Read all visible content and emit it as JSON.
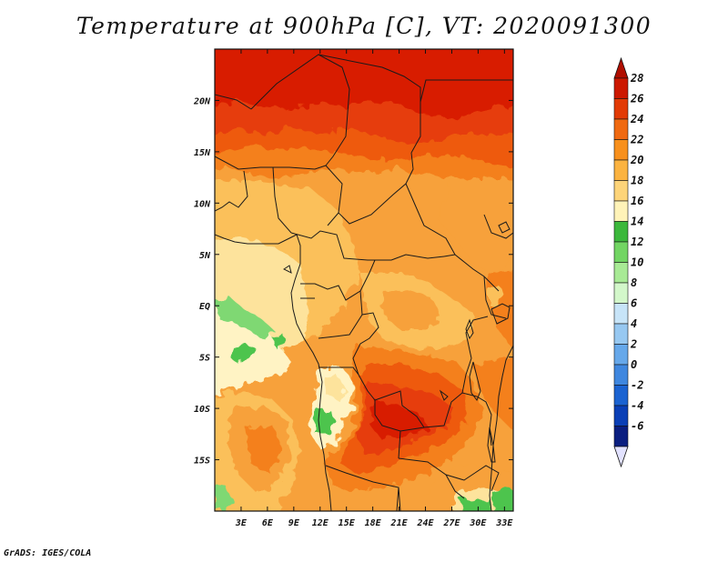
{
  "title": "Temperature at 900hPa [C], VT: 2020091300",
  "credit": "GrADS: IGES/COLA",
  "map": {
    "region": "Central and Southern Africa",
    "lon_range": [
      0,
      34
    ],
    "lat_range": [
      -20,
      25
    ],
    "x_ticks": [
      "3E",
      "6E",
      "9E",
      "12E",
      "15E",
      "18E",
      "21E",
      "24E",
      "27E",
      "30E",
      "33E"
    ],
    "x_tick_values": [
      3,
      6,
      9,
      12,
      15,
      18,
      21,
      24,
      27,
      30,
      33
    ],
    "y_ticks": [
      "20N",
      "15N",
      "10N",
      "5N",
      "EQ",
      "5S",
      "10S",
      "15S"
    ],
    "y_tick_values": [
      20,
      15,
      10,
      5,
      0,
      -5,
      -10,
      -15
    ]
  },
  "colorbar": {
    "labels": [
      "28",
      "26",
      "24",
      "22",
      "20",
      "18",
      "16",
      "14",
      "12",
      "10",
      "8",
      "6",
      "4",
      "2",
      "0",
      "-2",
      "-4",
      "-6"
    ],
    "colors": [
      "#cc1800",
      "#e23a05",
      "#f06910",
      "#f8901c",
      "#fbb340",
      "#fdd479",
      "#fff3b8",
      "#3cb83c",
      "#72d563",
      "#a8ea95",
      "#d3f7ca",
      "#c7e4f8",
      "#97c8f1",
      "#66a8ea",
      "#3f87df",
      "#1b63d1",
      "#0a3fb6",
      "#0a1e80"
    ],
    "top_arrow_color": "#b00e00",
    "bottom_arrow_color": "#e2e2ff"
  },
  "field_colors": {
    "t28": "#d81c00",
    "t27": "#e63c0a",
    "t26": "#ee5a10",
    "t24": "#f4801a",
    "t22": "#f7a13a",
    "t20": "#fbc05a",
    "t19": "#fdd27a",
    "t18": "#fde39c",
    "t16": "#fff3c4",
    "t14": "#4ec44e",
    "t12": "#7fd873",
    "border": "#1a1a1a"
  }
}
